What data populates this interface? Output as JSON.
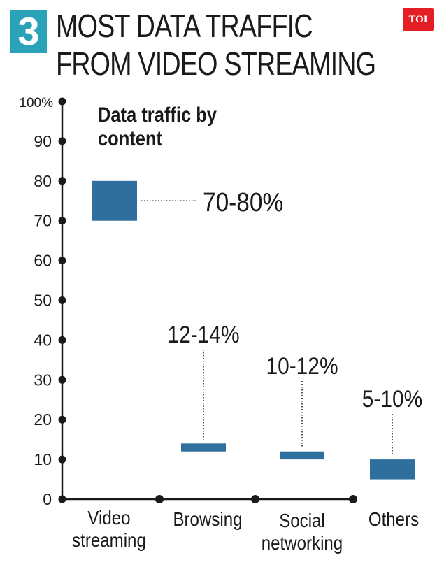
{
  "header": {
    "number": "3",
    "title_line1": "MOST DATA TRAFFIC",
    "title_line2": "FROM VIDEO STREAMING",
    "logo_text": "TOI"
  },
  "colors": {
    "bar": "#2e6f9e",
    "badge": "#2aa3b8",
    "logo": "#e31e24",
    "text": "#1a1a1a"
  },
  "chart_data": {
    "type": "bar",
    "subtitle_line1": "Data traffic by",
    "subtitle_line2": "content",
    "categories": [
      {
        "lines": [
          "Video",
          "streaming"
        ]
      },
      {
        "lines": [
          "Browsing"
        ]
      },
      {
        "lines": [
          "Social",
          "networking"
        ]
      },
      {
        "lines": [
          "Others"
        ]
      }
    ],
    "ranges": [
      {
        "low": 70,
        "high": 80,
        "label": "70-80%"
      },
      {
        "low": 12,
        "high": 14,
        "label": "12-14%"
      },
      {
        "low": 10,
        "high": 12,
        "label": "10-12%"
      },
      {
        "low": 5,
        "high": 10,
        "label": "5-10%"
      }
    ],
    "ylim": [
      0,
      100
    ],
    "yticks": [
      "0",
      "10",
      "20",
      "30",
      "40",
      "50",
      "60",
      "70",
      "80",
      "90",
      "100%"
    ]
  }
}
